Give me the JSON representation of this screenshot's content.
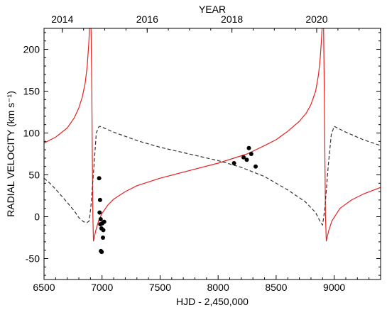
{
  "chart_data": {
    "type": "scatter",
    "title": "",
    "xlabel": "HJD - 2,450,000",
    "ylabel": "RADIAL VELOCITY (km s⁻¹)",
    "top_xlabel": "YEAR",
    "xlim": [
      6500,
      9400
    ],
    "ylim": [
      -75,
      225
    ],
    "x_ticks": [
      6500,
      7000,
      7500,
      8000,
      8500,
      9000
    ],
    "y_ticks": [
      -50,
      0,
      50,
      100,
      150,
      200
    ],
    "top_ticks": [
      {
        "label": "2014",
        "x": 6658
      },
      {
        "label": "2016",
        "x": 7389
      },
      {
        "label": "2018",
        "x": 8119
      },
      {
        "label": "2020",
        "x": 8849
      }
    ],
    "grid": false,
    "legend": "none",
    "colors": {
      "primary_curve": "#e8211e",
      "secondary_curve": "#333333",
      "points": "#000000"
    },
    "series": [
      {
        "style": "scatter",
        "points": [
          [
            6975,
            46
          ],
          [
            6983,
            20
          ],
          [
            6979,
            5
          ],
          [
            6988,
            -3
          ],
          [
            6985,
            -9
          ],
          [
            7002,
            -8
          ],
          [
            7018,
            -6
          ],
          [
            7011,
            -16
          ],
          [
            6995,
            -14
          ],
          [
            7008,
            -25
          ],
          [
            6990,
            -41
          ],
          [
            6997,
            -42
          ],
          [
            8137,
            64
          ],
          [
            8219,
            71
          ],
          [
            8247,
            68
          ],
          [
            8265,
            82
          ],
          [
            8285,
            75
          ],
          [
            8323,
            60
          ]
        ]
      },
      {
        "style": "solid",
        "points": [
          [
            6500,
            88
          ],
          [
            6600,
            95
          ],
          [
            6700,
            106
          ],
          [
            6760,
            118
          ],
          [
            6800,
            130
          ],
          [
            6830,
            143
          ],
          [
            6855,
            160
          ],
          [
            6872,
            180
          ],
          [
            6885,
            205
          ],
          [
            6892,
            225
          ],
          [
            6905,
            225
          ],
          [
            6912,
            150
          ],
          [
            6916,
            75
          ],
          [
            6921,
            0
          ],
          [
            6926,
            -29
          ],
          [
            6945,
            -17
          ],
          [
            6970,
            -5
          ],
          [
            7000,
            4
          ],
          [
            7050,
            14
          ],
          [
            7100,
            21
          ],
          [
            7200,
            30
          ],
          [
            7300,
            37
          ],
          [
            7500,
            46
          ],
          [
            7750,
            55
          ],
          [
            8000,
            64
          ],
          [
            8250,
            75
          ],
          [
            8400,
            85
          ],
          [
            8500,
            92
          ],
          [
            8600,
            102
          ],
          [
            8700,
            114
          ],
          [
            8760,
            124
          ],
          [
            8800,
            134
          ],
          [
            8840,
            150
          ],
          [
            8865,
            170
          ],
          [
            8880,
            190
          ],
          [
            8890,
            210
          ],
          [
            8896,
            225
          ],
          [
            8909,
            225
          ],
          [
            8915,
            150
          ],
          [
            8920,
            75
          ],
          [
            8925,
            0
          ],
          [
            8932,
            -29
          ],
          [
            8952,
            -17
          ],
          [
            8980,
            -5
          ],
          [
            9050,
            10
          ],
          [
            9150,
            20
          ],
          [
            9250,
            27
          ],
          [
            9400,
            35
          ]
        ]
      },
      {
        "style": "dashed",
        "points": [
          [
            6500,
            46
          ],
          [
            6550,
            40
          ],
          [
            6600,
            33
          ],
          [
            6650,
            25
          ],
          [
            6700,
            17
          ],
          [
            6760,
            7
          ],
          [
            6800,
            -1
          ],
          [
            6840,
            -6
          ],
          [
            6870,
            -7
          ],
          [
            6890,
            -5
          ],
          [
            6905,
            14
          ],
          [
            6930,
            60
          ],
          [
            6950,
            100
          ],
          [
            6970,
            107
          ],
          [
            6980,
            108
          ],
          [
            7000,
            107
          ],
          [
            7100,
            101
          ],
          [
            7300,
            91
          ],
          [
            7500,
            83
          ],
          [
            7750,
            75
          ],
          [
            8000,
            67
          ],
          [
            8200,
            59
          ],
          [
            8400,
            48
          ],
          [
            8600,
            32
          ],
          [
            8750,
            18
          ],
          [
            8840,
            5
          ],
          [
            8880,
            -6
          ],
          [
            8900,
            -10
          ],
          [
            8920,
            10
          ],
          [
            8950,
            62
          ],
          [
            8975,
            98
          ],
          [
            9000,
            108
          ],
          [
            9100,
            101
          ],
          [
            9250,
            92
          ],
          [
            9400,
            85
          ]
        ]
      }
    ]
  }
}
